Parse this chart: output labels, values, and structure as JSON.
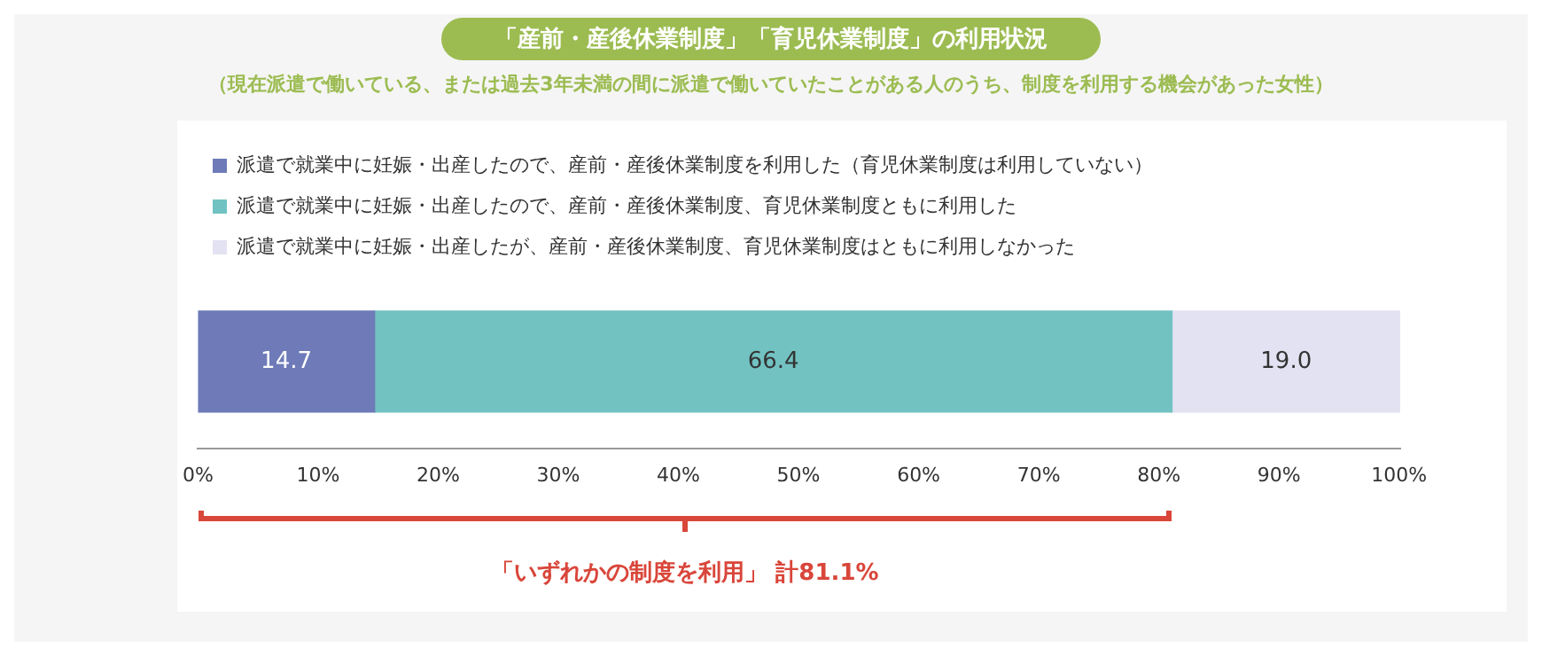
{
  "chart_data": {
    "type": "bar",
    "title": "「産前・産後休業制度」「育児休業制度」の利用状況",
    "subtitle": "（現在派遣で働いている、または過去3年未満の間に派遣で働いていたことがある人のうち、制度を利用する機会があった女性）",
    "orientation": "horizontal",
    "stacked": true,
    "categories": [
      null
    ],
    "series": [
      {
        "name": "派遣で就業中に妊娠・出産したので、産前・産後休業制度を利用した（育児休業制度は利用していない）",
        "color": "#6e7bb8",
        "values": [
          14.7
        ],
        "value_labels": [
          "14.7"
        ]
      },
      {
        "name": "派遣で就業中に妊娠・出産したので、産前・産後休業制度、育児休業制度ともに利用した",
        "color": "#72c2c2",
        "values": [
          66.4
        ],
        "value_labels": [
          "66.4"
        ]
      },
      {
        "name": "派遣で就業中に妊娠・出産したが、産前・産後休業制度、育児休業制度はともに利用しなかった",
        "color": "#e2e2f2",
        "values": [
          19.0
        ],
        "value_labels": [
          "19.0"
        ]
      }
    ],
    "xlim": [
      0,
      100.1
    ],
    "xticks": [
      {
        "value": 0,
        "label": "0%"
      },
      {
        "value": 10,
        "label": "10%"
      },
      {
        "value": 20,
        "label": "20%"
      },
      {
        "value": 30,
        "label": "30%"
      },
      {
        "value": 40,
        "label": "40%"
      },
      {
        "value": 50,
        "label": "50%"
      },
      {
        "value": 60,
        "label": "60%"
      },
      {
        "value": 70,
        "label": "70%"
      },
      {
        "value": 80,
        "label": "80%"
      },
      {
        "value": 90,
        "label": "90%"
      },
      {
        "value": 100,
        "label": "100%"
      }
    ],
    "grid": false,
    "legend": "top left",
    "annotations": [
      "「いずれかの制度を利用」 計81.1%"
    ]
  }
}
